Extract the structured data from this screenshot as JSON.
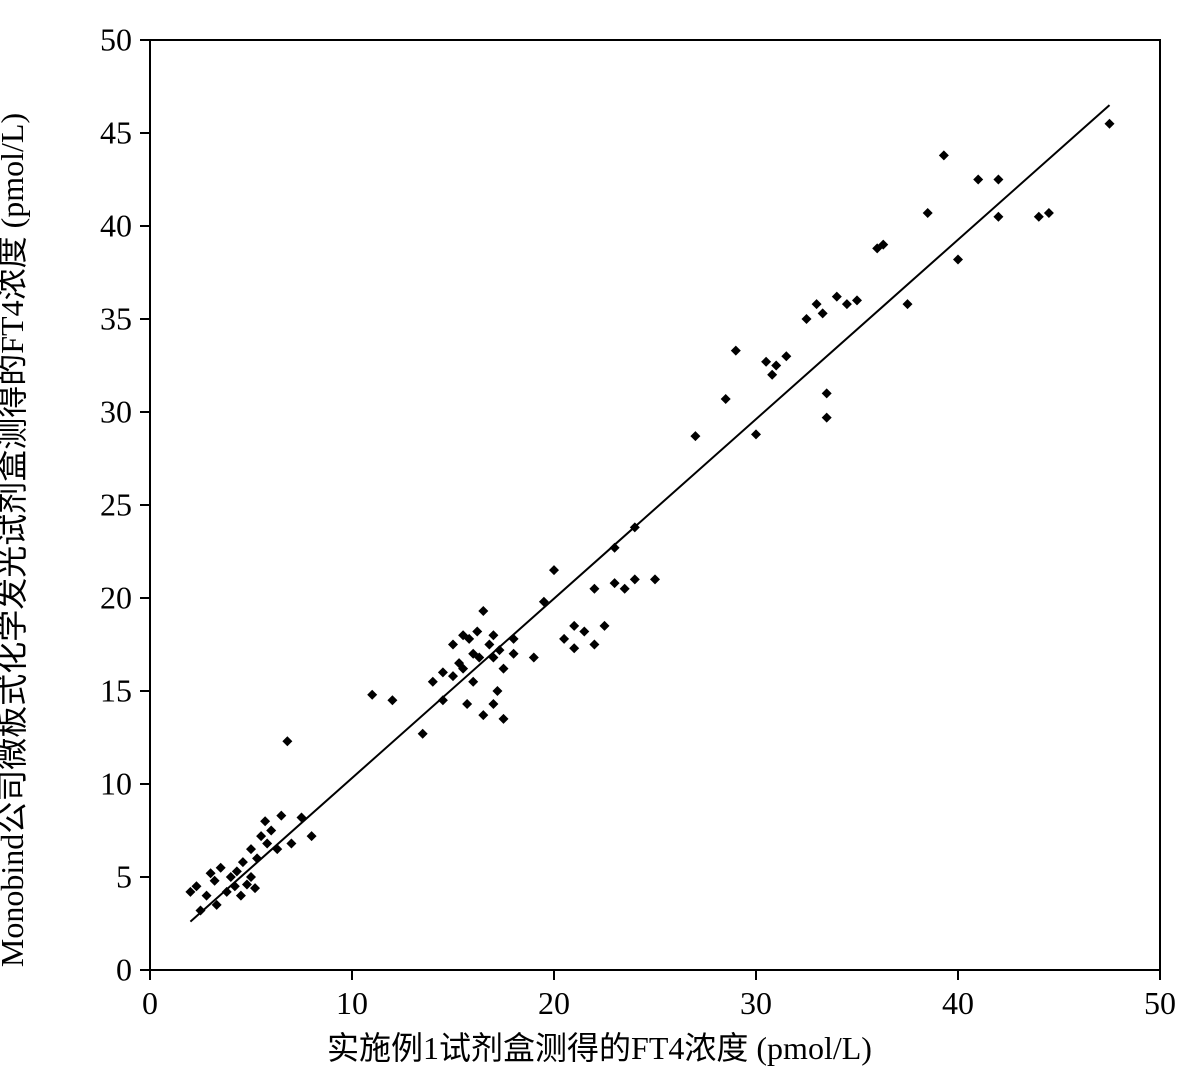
{
  "chart": {
    "type": "scatter",
    "background_color": "#ffffff",
    "plot_border_color": "#000000",
    "plot_border_width": 2,
    "xlabel": "实施例1试剂盒测得的FT4浓度 (pmol/L)",
    "ylabel": "Monobind公司微板式化学发光试剂盒测得的FT4浓度   (pmol/L)",
    "label_fontsize": 32,
    "tick_fontsize": 32,
    "xlim": [
      0,
      50
    ],
    "ylim": [
      0,
      50
    ],
    "xtick_step": 10,
    "ytick_step": 5,
    "xticks": [
      0,
      10,
      20,
      30,
      40,
      50
    ],
    "yticks": [
      0,
      5,
      10,
      15,
      20,
      25,
      30,
      35,
      40,
      45,
      50
    ],
    "tick_length": 10,
    "marker_color": "#000000",
    "marker_size": 5,
    "marker_shape": "diamond",
    "line_color": "#000000",
    "line_width": 2,
    "regression_line": {
      "x1": 2.0,
      "y1": 2.6,
      "x2": 47.5,
      "y2": 46.5
    },
    "points": [
      {
        "x": 2.0,
        "y": 4.2
      },
      {
        "x": 2.3,
        "y": 4.5
      },
      {
        "x": 2.5,
        "y": 3.2
      },
      {
        "x": 2.8,
        "y": 4.0
      },
      {
        "x": 3.0,
        "y": 5.2
      },
      {
        "x": 3.2,
        "y": 4.8
      },
      {
        "x": 3.3,
        "y": 3.5
      },
      {
        "x": 3.5,
        "y": 5.5
      },
      {
        "x": 3.8,
        "y": 4.2
      },
      {
        "x": 4.0,
        "y": 5.0
      },
      {
        "x": 4.2,
        "y": 4.5
      },
      {
        "x": 4.3,
        "y": 5.3
      },
      {
        "x": 4.5,
        "y": 4.0
      },
      {
        "x": 4.6,
        "y": 5.8
      },
      {
        "x": 4.8,
        "y": 4.6
      },
      {
        "x": 5.0,
        "y": 5.0
      },
      {
        "x": 5.0,
        "y": 6.5
      },
      {
        "x": 5.2,
        "y": 4.4
      },
      {
        "x": 5.3,
        "y": 6.0
      },
      {
        "x": 5.5,
        "y": 7.2
      },
      {
        "x": 5.7,
        "y": 8.0
      },
      {
        "x": 5.8,
        "y": 6.8
      },
      {
        "x": 6.0,
        "y": 7.5
      },
      {
        "x": 6.3,
        "y": 6.5
      },
      {
        "x": 6.5,
        "y": 8.3
      },
      {
        "x": 6.8,
        "y": 12.3
      },
      {
        "x": 7.0,
        "y": 6.8
      },
      {
        "x": 7.5,
        "y": 8.2
      },
      {
        "x": 8.0,
        "y": 7.2
      },
      {
        "x": 11.0,
        "y": 14.8
      },
      {
        "x": 12.0,
        "y": 14.5
      },
      {
        "x": 13.5,
        "y": 12.7
      },
      {
        "x": 14.0,
        "y": 15.5
      },
      {
        "x": 14.5,
        "y": 14.5
      },
      {
        "x": 14.5,
        "y": 16.0
      },
      {
        "x": 15.0,
        "y": 17.5
      },
      {
        "x": 15.0,
        "y": 15.8
      },
      {
        "x": 15.3,
        "y": 16.5
      },
      {
        "x": 15.5,
        "y": 18.0
      },
      {
        "x": 15.5,
        "y": 16.2
      },
      {
        "x": 15.7,
        "y": 14.3
      },
      {
        "x": 15.8,
        "y": 17.8
      },
      {
        "x": 16.0,
        "y": 17.0
      },
      {
        "x": 16.0,
        "y": 15.5
      },
      {
        "x": 16.2,
        "y": 18.2
      },
      {
        "x": 16.3,
        "y": 16.8
      },
      {
        "x": 16.5,
        "y": 13.7
      },
      {
        "x": 16.5,
        "y": 19.3
      },
      {
        "x": 16.8,
        "y": 17.5
      },
      {
        "x": 17.0,
        "y": 14.3
      },
      {
        "x": 17.0,
        "y": 16.8
      },
      {
        "x": 17.0,
        "y": 18.0
      },
      {
        "x": 17.2,
        "y": 15.0
      },
      {
        "x": 17.3,
        "y": 17.2
      },
      {
        "x": 17.5,
        "y": 13.5
      },
      {
        "x": 17.5,
        "y": 16.2
      },
      {
        "x": 18.0,
        "y": 17.0
      },
      {
        "x": 18.0,
        "y": 17.8
      },
      {
        "x": 19.0,
        "y": 16.8
      },
      {
        "x": 19.5,
        "y": 19.8
      },
      {
        "x": 20.0,
        "y": 21.5
      },
      {
        "x": 20.5,
        "y": 17.8
      },
      {
        "x": 21.0,
        "y": 18.5
      },
      {
        "x": 21.0,
        "y": 17.3
      },
      {
        "x": 21.5,
        "y": 18.2
      },
      {
        "x": 22.0,
        "y": 17.5
      },
      {
        "x": 22.0,
        "y": 20.5
      },
      {
        "x": 22.5,
        "y": 18.5
      },
      {
        "x": 23.0,
        "y": 20.8
      },
      {
        "x": 23.0,
        "y": 22.7
      },
      {
        "x": 23.5,
        "y": 20.5
      },
      {
        "x": 24.0,
        "y": 21.0
      },
      {
        "x": 24.0,
        "y": 23.8
      },
      {
        "x": 25.0,
        "y": 21.0
      },
      {
        "x": 27.0,
        "y": 28.7
      },
      {
        "x": 28.5,
        "y": 30.7
      },
      {
        "x": 29.0,
        "y": 33.3
      },
      {
        "x": 30.0,
        "y": 28.8
      },
      {
        "x": 30.5,
        "y": 32.7
      },
      {
        "x": 30.8,
        "y": 32.0
      },
      {
        "x": 31.0,
        "y": 32.5
      },
      {
        "x": 31.5,
        "y": 33.0
      },
      {
        "x": 32.5,
        "y": 35.0
      },
      {
        "x": 33.0,
        "y": 35.8
      },
      {
        "x": 33.3,
        "y": 35.3
      },
      {
        "x": 33.5,
        "y": 29.7
      },
      {
        "x": 33.5,
        "y": 31.0
      },
      {
        "x": 34.0,
        "y": 36.2
      },
      {
        "x": 34.5,
        "y": 35.8
      },
      {
        "x": 35.0,
        "y": 36.0
      },
      {
        "x": 36.0,
        "y": 38.8
      },
      {
        "x": 36.3,
        "y": 39.0
      },
      {
        "x": 37.5,
        "y": 35.8
      },
      {
        "x": 38.5,
        "y": 40.7
      },
      {
        "x": 39.3,
        "y": 43.8
      },
      {
        "x": 40.0,
        "y": 38.2
      },
      {
        "x": 41.0,
        "y": 42.5
      },
      {
        "x": 42.0,
        "y": 40.5
      },
      {
        "x": 42.0,
        "y": 42.5
      },
      {
        "x": 44.0,
        "y": 40.5
      },
      {
        "x": 44.5,
        "y": 40.7
      },
      {
        "x": 47.5,
        "y": 45.5
      }
    ]
  }
}
